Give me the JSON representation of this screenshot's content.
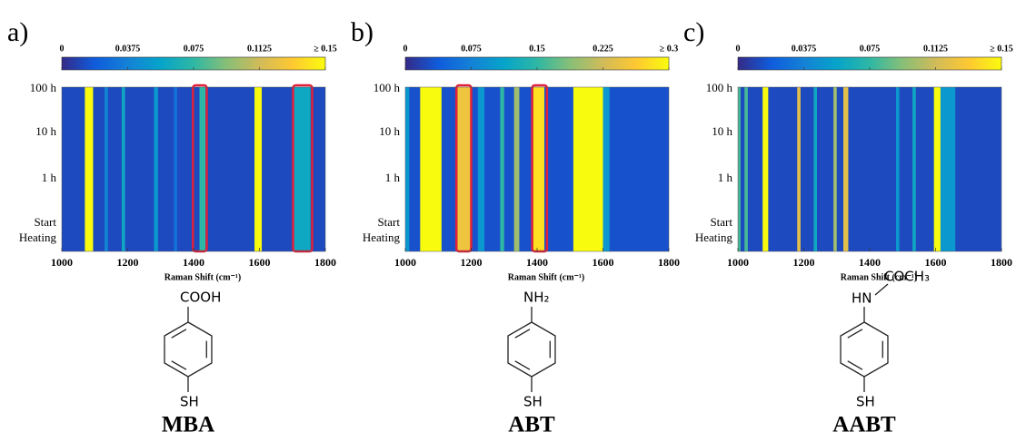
{
  "chart_data": [
    {
      "type": "heatmap",
      "label": "a)",
      "xlabel": "Raman Shift (cm⁻¹)",
      "xlim": [
        1000,
        1800
      ],
      "xticks": [
        1000,
        1200,
        1400,
        1600,
        1800
      ],
      "categories": [
        "Start Heating",
        "1 h",
        "10 h",
        "100 h"
      ],
      "clim": [
        0,
        0.15
      ],
      "cticks": [
        0,
        0.0375,
        0.075,
        0.1125,
        {
          "value": 0.15,
          "label": "≥ 0.15"
        }
      ],
      "colormap": [
        "#352a87",
        "#0f5cdd",
        "#1481d6",
        "#06a4ca",
        "#2eb7a4",
        "#87bf77",
        "#d1bb59",
        "#fec832",
        "#f9fb0e"
      ],
      "background": 0.012,
      "bands": [
        {
          "x": [
            1070,
            1095
          ],
          "value": 0.15
        },
        {
          "x": [
            1130,
            1140
          ],
          "value": 0.04
        },
        {
          "x": [
            1182,
            1192
          ],
          "value": 0.06
        },
        {
          "x": [
            1280,
            1292
          ],
          "value": 0.05
        },
        {
          "x": [
            1340,
            1350
          ],
          "value": 0.03
        },
        {
          "x": [
            1418,
            1436
          ],
          "value": 0.075
        },
        {
          "x": [
            1585,
            1607
          ],
          "value": 0.15
        },
        {
          "x": [
            1705,
            1755
          ],
          "value": 0.06
        }
      ],
      "highlights": [
        [
          1398,
          1440
        ],
        [
          1702,
          1760
        ]
      ],
      "highlight_color": "#e0203a",
      "molecule": {
        "substituent": "COOH",
        "thiol": "SH",
        "name": "MBA"
      }
    },
    {
      "type": "heatmap",
      "label": "b)",
      "xlabel": "Raman Shift (cm⁻¹)",
      "xlim": [
        1000,
        1800
      ],
      "xticks": [
        1000,
        1200,
        1400,
        1600,
        1800
      ],
      "categories": [
        "Start Heating",
        "1 h",
        "10 h",
        "100 h"
      ],
      "clim": [
        0,
        0.3
      ],
      "cticks": [
        0,
        0.075,
        0.15,
        0.225,
        {
          "value": 0.3,
          "label": "≥ 0.3"
        }
      ],
      "colormap": [
        "#352a87",
        "#0f5cdd",
        "#1481d6",
        "#06a4ca",
        "#2eb7a4",
        "#87bf77",
        "#d1bb59",
        "#fec832",
        "#f9fb0e"
      ],
      "background": 0.03,
      "bands": [
        {
          "x": [
            1000,
            1012
          ],
          "value": 0.1
        },
        {
          "x": [
            1045,
            1110
          ],
          "value": 0.3
        },
        {
          "x": [
            1158,
            1198
          ],
          "value": 0.25
        },
        {
          "x": [
            1220,
            1240
          ],
          "value": 0.1
        },
        {
          "x": [
            1288,
            1300
          ],
          "value": 0.15
        },
        {
          "x": [
            1330,
            1346
          ],
          "value": 0.2
        },
        {
          "x": [
            1388,
            1422
          ],
          "value": 0.28
        },
        {
          "x": [
            1510,
            1600
          ],
          "value": 0.3
        },
        {
          "x": [
            1600,
            1620
          ],
          "value": 0.1
        }
      ],
      "highlights": [
        [
          1155,
          1200
        ],
        [
          1385,
          1430
        ]
      ],
      "highlight_color": "#e0203a",
      "molecule": {
        "substituent": "NH₂",
        "thiol": "SH",
        "name": "ABT"
      }
    },
    {
      "type": "heatmap",
      "label": "c)",
      "xlabel": "Raman Shift (cm⁻¹)",
      "xlim": [
        1000,
        1800
      ],
      "xticks": [
        1000,
        1200,
        1400,
        1600,
        1800
      ],
      "categories": [
        "Start Heating",
        "1 h",
        "10 h",
        "100 h"
      ],
      "clim": [
        0,
        0.15
      ],
      "cticks": [
        0,
        0.0375,
        0.075,
        0.1125,
        {
          "value": 0.15,
          "label": "≥ 0.15"
        }
      ],
      "colormap": [
        "#352a87",
        "#0f5cdd",
        "#1481d6",
        "#06a4ca",
        "#2eb7a4",
        "#87bf77",
        "#d1bb59",
        "#fec832",
        "#f9fb0e"
      ],
      "background": 0.012,
      "bands": [
        {
          "x": [
            1000,
            1008
          ],
          "value": 0.08
        },
        {
          "x": [
            1020,
            1030
          ],
          "value": 0.08
        },
        {
          "x": [
            1075,
            1092
          ],
          "value": 0.15
        },
        {
          "x": [
            1180,
            1190
          ],
          "value": 0.12
        },
        {
          "x": [
            1230,
            1240
          ],
          "value": 0.06
        },
        {
          "x": [
            1290,
            1300
          ],
          "value": 0.1
        },
        {
          "x": [
            1320,
            1335
          ],
          "value": 0.12
        },
        {
          "x": [
            1480,
            1490
          ],
          "value": 0.05
        },
        {
          "x": [
            1530,
            1540
          ],
          "value": 0.06
        },
        {
          "x": [
            1595,
            1615
          ],
          "value": 0.15
        },
        {
          "x": [
            1615,
            1660
          ],
          "value": 0.05
        }
      ],
      "highlights": [],
      "highlight_color": "#e0203a",
      "molecule": {
        "amine": "HN",
        "substituent": "COCH₃",
        "thiol": "SH",
        "name": "AABT"
      }
    }
  ]
}
